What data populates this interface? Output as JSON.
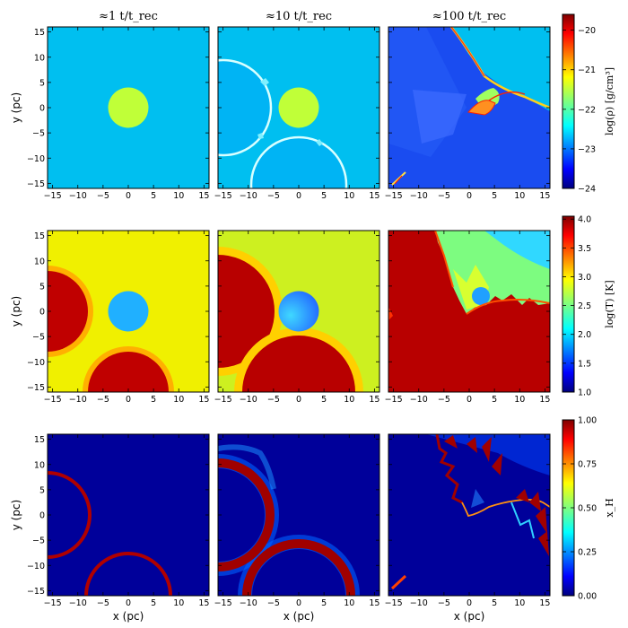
{
  "column_titles": [
    "≈1 t/t_rec",
    "≈10 t/t_rec",
    "≈100 t/t_rec"
  ],
  "chart_data": {
    "type": "heatmap",
    "xlabel": "x (pc)",
    "ylabel": "y (pc)",
    "xlim": [
      -16,
      16
    ],
    "ylim": [
      -16,
      16
    ],
    "xticks": [
      "−15",
      "−10",
      "−5",
      "0",
      "5",
      "10",
      "15"
    ],
    "yticks": [
      "15",
      "10",
      "5",
      "0",
      "−5",
      "−10",
      "−15"
    ],
    "rows": [
      {
        "quantity": "density",
        "colorbar_label": "log(ρ) [g/cm³]",
        "colorbar_range": [
          -24,
          -19.6
        ],
        "colorbar_ticks": [
          "−20",
          "−21",
          "−22",
          "−23",
          "−24"
        ],
        "colorbar_tick_values": [
          -20,
          -21,
          -22,
          -23,
          -24
        ]
      },
      {
        "quantity": "temperature",
        "colorbar_label": "log(T) [K]",
        "colorbar_range": [
          1.0,
          4.05
        ],
        "colorbar_ticks": [
          "4.0",
          "3.5",
          "3.0",
          "2.5",
          "2.0",
          "1.5",
          "1.0"
        ],
        "colorbar_tick_values": [
          4.0,
          3.5,
          3.0,
          2.5,
          2.0,
          1.5,
          1.0
        ]
      },
      {
        "quantity": "ionization fraction",
        "colorbar_label": "x_H",
        "colorbar_range": [
          0.0,
          1.0
        ],
        "colorbar_ticks": [
          "1.00",
          "0.75",
          "0.50",
          "0.25",
          "0.00"
        ],
        "colorbar_tick_values": [
          1.0,
          0.75,
          0.5,
          0.25,
          0.0
        ]
      }
    ],
    "features": {
      "clump": {
        "x": 0,
        "y": 0,
        "r": 4
      },
      "sources": [
        {
          "x": -15,
          "y": 0
        },
        {
          "x": 0,
          "y": -15
        }
      ],
      "front_radius_t1": 8,
      "front_radius_t10": 11.5
    }
  },
  "colors": {
    "jet_dark_blue": "#00007f",
    "jet_blue": "#0000ff",
    "jet_cyan": "#00ffff",
    "jet_yellow": "#ffff00",
    "jet_red": "#ff0000",
    "jet_dark_red": "#7f0000",
    "density_ambient": "#00bff0",
    "density_clump": "#c0ff38",
    "temp_ambient": "#f0f000",
    "temp_hot": "#c00000",
    "temp_clump": "#20b0ff",
    "xh_neutral": "#00009a"
  }
}
